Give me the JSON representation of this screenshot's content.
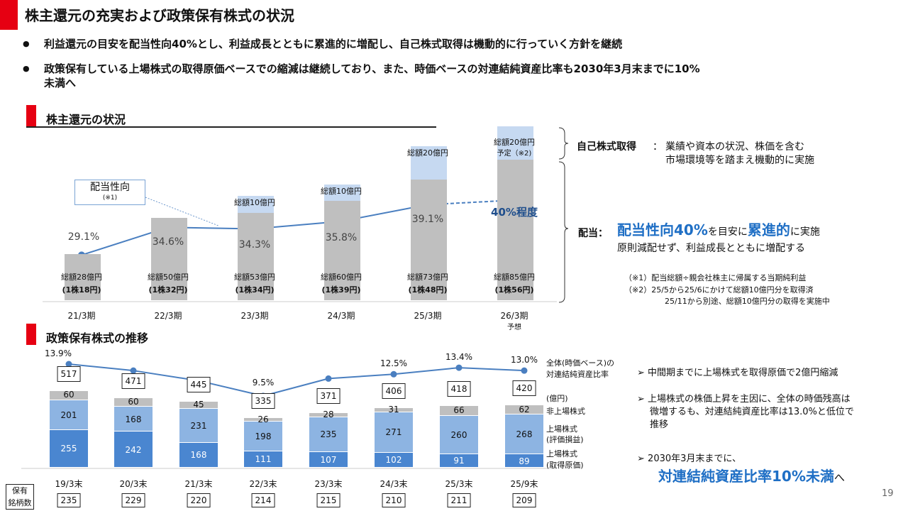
{
  "title": "株主還元の充実および政策保有株式の状況",
  "bullets": [
    {
      "icon": "bullet-dot",
      "text": "利益還元の目安を配当性向40%とし、利益成長とともに累進的に増配し、自己株式取得は機動的に行っていく方針を継続"
    },
    {
      "icon": "bullet-dot",
      "text": "政策保有している上場株式の取得原価ベースでの縮減は継続しており、また、時価ベースの対連結純資産比率も2030年3月末までに10%",
      "text2": "未満へ"
    }
  ],
  "bullet_char": "●",
  "section1": {
    "title": "株主還元の状況"
  },
  "section2": {
    "title": "政策保有株式の推移"
  },
  "colors": {
    "accent": "#e60012",
    "bar_gray": "#bfbfbf",
    "buyback_blue": "#c6d9f1",
    "line_blue": "#4a7fc0",
    "cost_blue": "#4a86d0",
    "gain_blue": "#8db4e2",
    "text_blue": "#1f6fc5"
  },
  "chart_data": [
    {
      "type": "bar",
      "stacked": true,
      "categories": [
        "21/3期",
        "22/3期",
        "23/3期",
        "24/3期",
        "25/3期",
        "26/3期"
      ],
      "category_sub": [
        "",
        "",
        "",
        "",
        "",
        "予想"
      ],
      "series": [
        {
          "values": [
            28,
            50,
            53,
            60,
            73,
            85
          ],
          "labels": [
            "総額28億円",
            "総額50億円",
            "総額53億円",
            "総額60億円",
            "総額73億円",
            "総額85億円"
          ],
          "sublabels": [
            "(1株18円)",
            "(1株32円)",
            "(1株34円)",
            "(1株39円)",
            "(1株48円)",
            "(1株56円)"
          ]
        },
        {
          "values": [
            0,
            0,
            10,
            10,
            20,
            20
          ],
          "labels": [
            "",
            "",
            "総額10億円",
            "総額10億円",
            "総額20億円",
            "総額20億円"
          ],
          "sublabels": [
            "",
            "",
            "",
            "",
            "",
            "予定（※2)"
          ]
        }
      ],
      "line": {
        "name": "配当性向",
        "note": "(※1)",
        "values": [
          29.1,
          34.6,
          34.3,
          35.8,
          39.1,
          40
        ],
        "labels": [
          "29.1%",
          "34.6%",
          "34.3%",
          "35.8%",
          "39.1%",
          "40%程度"
        ],
        "last_dashed": true
      }
    },
    {
      "type": "bar",
      "stacked": true,
      "categories": [
        "19/3末",
        "20/3末",
        "21/3末",
        "22/3末",
        "23/3末",
        "24/3末",
        "25/3末",
        "25/9末"
      ],
      "unit": "(億円)",
      "series": [
        {
          "name": "上場株式\n(取得原価)",
          "name1": "上場株式",
          "name2": "(取得原価)",
          "values": [
            255,
            242,
            168,
            111,
            107,
            102,
            91,
            89
          ]
        },
        {
          "name": "上場株式\n(評価損益)",
          "name1": "上場株式",
          "name2": "(評価損益)",
          "values": [
            201,
            168,
            231,
            198,
            235,
            271,
            260,
            268
          ]
        },
        {
          "name": "非上場株式",
          "values": [
            60,
            60,
            45,
            26,
            28,
            31,
            66,
            62
          ]
        }
      ],
      "totals": [
        517,
        471,
        445,
        335,
        371,
        406,
        418,
        420
      ],
      "line": {
        "name1": "全体(時価ベース)の",
        "name2": "対連結純資産比率",
        "values": [
          13.9,
          13.0,
          11.6,
          9.5,
          11.9,
          12.5,
          13.4,
          13.0
        ],
        "labels": [
          "13.9%",
          "",
          "",
          "9.5%",
          "",
          "12.5%",
          "13.4%",
          "13.0%"
        ]
      },
      "holdings_label1": "保有",
      "holdings_label2": "銘柄数",
      "holdings": [
        235,
        229,
        220,
        214,
        215,
        210,
        211,
        209
      ]
    }
  ],
  "right1": {
    "buyback_title": "自己株式取得",
    "colon": "：",
    "buyback_l1": "業績や資本の状況、株価を含む",
    "buyback_l2": "市場環境等を踏まえ機動的に実施",
    "div_title": "配当：",
    "div_b1": "配当性向40%",
    "div_t1": "を目安に",
    "div_b2": "累進的",
    "div_t2": "に実施",
    "div_l2": "原則減配せず、利益成長とともに増配する",
    "notes": [
      "（※1）配当総額÷親会社株主に帰属する当期純利益",
      "（※2）25/5から25/6にかけて総額10億円分を取得済",
      "25/11から別途、総額10億円分の取得を実施中"
    ]
  },
  "right2": {
    "arrow": "➢",
    "items": [
      "中間期までに上場株式を取得原価で2億円縮減",
      "上場株式の株価上昇を主因に、全体の時価残高は",
      "微増するも、対連結純資産比率は13.0%と低位で",
      "推移",
      "2030年3月末までに、"
    ],
    "highlight": "対連結純資産比率10%未満",
    "tail": "へ"
  },
  "page_number": "19"
}
